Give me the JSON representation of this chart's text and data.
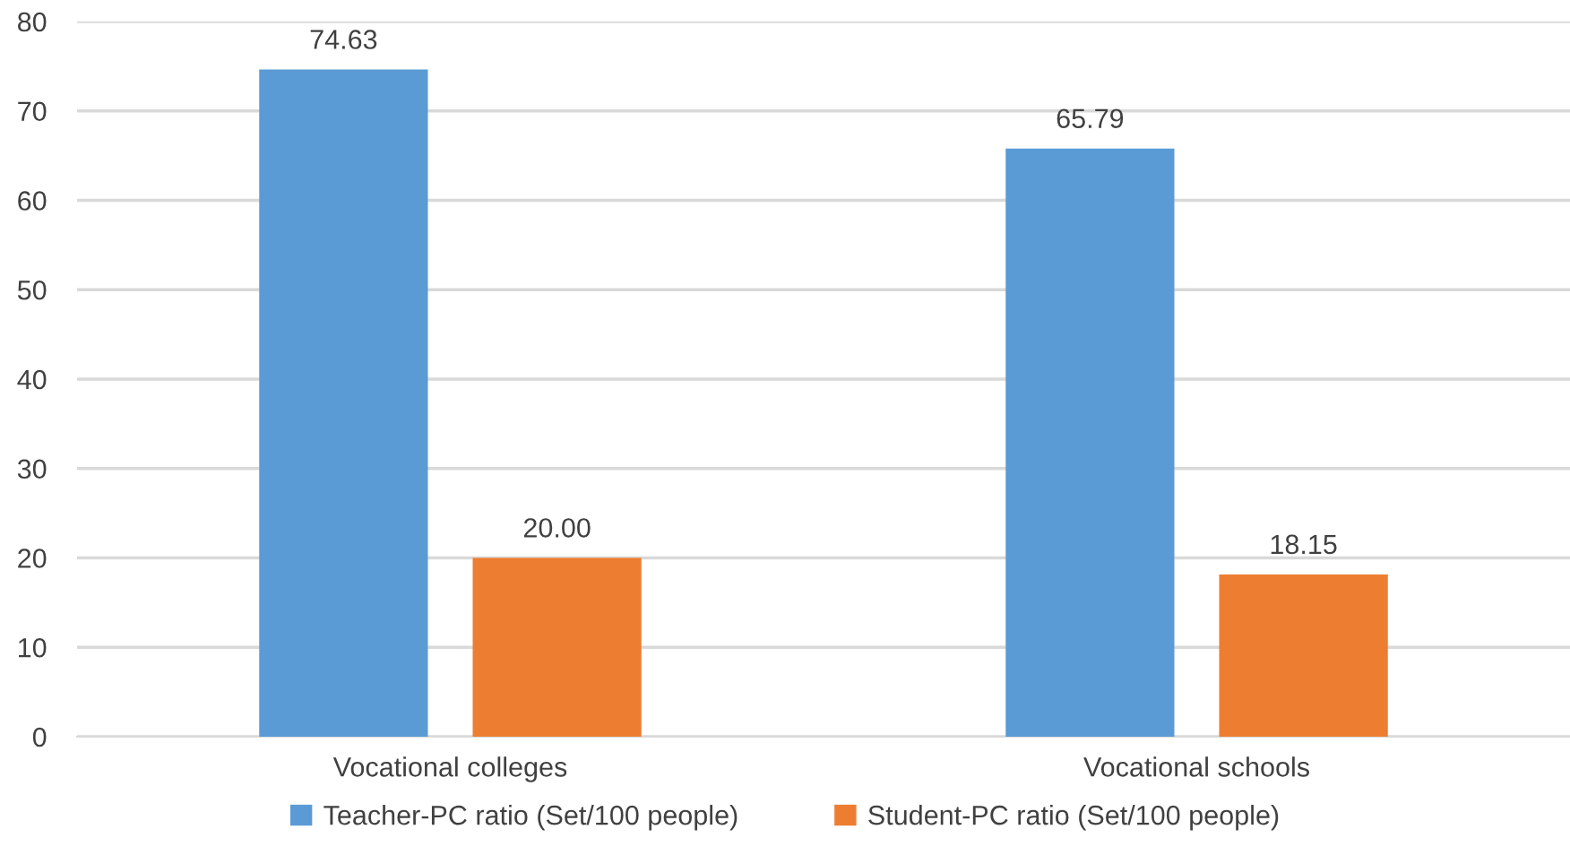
{
  "chart_data": {
    "type": "bar",
    "categories": [
      "Vocational colleges",
      "Vocational schools"
    ],
    "series": [
      {
        "name": "Teacher-PC ratio (Set/100 people)",
        "color": "#5b9bd5",
        "values": [
          74.63,
          65.79
        ],
        "value_labels": [
          "74.63",
          "65.79"
        ]
      },
      {
        "name": "Student-PC ratio (Set/100 people)",
        "color": "#ed7d31",
        "values": [
          20.0,
          18.15
        ],
        "value_labels": [
          "20.00",
          "18.15"
        ]
      }
    ],
    "ylim": [
      0,
      80
    ],
    "yticks": [
      0,
      10,
      20,
      30,
      40,
      50,
      60,
      70,
      80
    ],
    "grid": "y",
    "legend": "bottom"
  }
}
